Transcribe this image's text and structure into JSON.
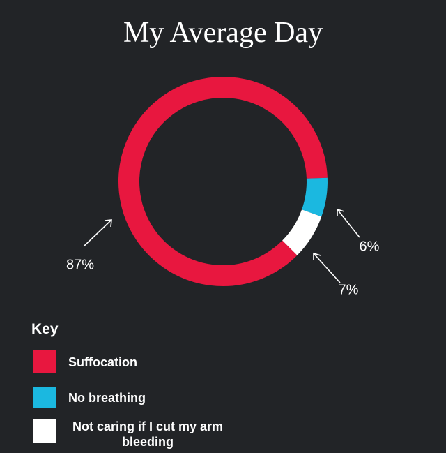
{
  "chart_data": {
    "type": "pie",
    "title": "My Average Day",
    "categories": [
      "Suffocation",
      "No breathing",
      "Not caring if I cut my arm bleeding"
    ],
    "values": [
      87,
      6,
      7
    ],
    "value_labels": [
      "87%",
      "6%",
      "7%"
    ],
    "colors": [
      "#e8173f",
      "#1bb8e0",
      "#ffffff"
    ],
    "legend_title": "Key"
  }
}
